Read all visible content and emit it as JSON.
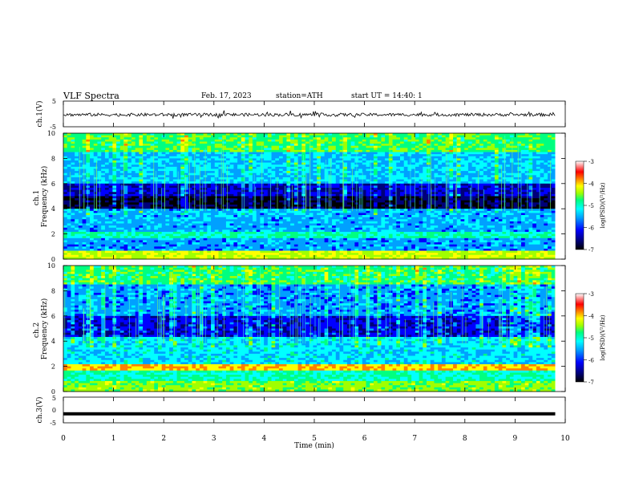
{
  "header": {
    "title": "VLF Spectra",
    "date": "Feb. 17, 2023",
    "station": "station=ATH",
    "start_ut": "start UT =   14:40: 1"
  },
  "chart_data": [
    {
      "type": "line",
      "panel": "ch1-waveform",
      "ylabel": "ch.1(V)",
      "ylim": [
        -5,
        5
      ],
      "y_ticks": [
        "5",
        "-5"
      ],
      "xlim": [
        0,
        10
      ],
      "series_description_value_range": [
        -1.5,
        1.0
      ],
      "mean": -0.3
    },
    {
      "type": "heatmap",
      "panel": "ch1-spectrogram",
      "ylabel": "ch.1\nFrequency (kHz)",
      "ylabel_lines": [
        "ch.1",
        "Frequency (kHz)"
      ],
      "ylim": [
        0,
        10
      ],
      "y_ticks": [
        "0",
        "2",
        "4",
        "6",
        "8",
        "10"
      ],
      "xlim": [
        0,
        10
      ],
      "data_end_min": 9.8,
      "colorbar": {
        "label": "log(PSD)(V²/Hz)",
        "range": [
          -7,
          -3
        ],
        "ticks": [
          "-3",
          "-4",
          "-5",
          "-6",
          "-7"
        ]
      }
    },
    {
      "type": "heatmap",
      "panel": "ch2-spectrogram",
      "ylabel_lines": [
        "ch.2",
        "Frequency (kHz)"
      ],
      "ylim": [
        0,
        10
      ],
      "y_ticks": [
        "0",
        "2",
        "4",
        "6",
        "8",
        "10"
      ],
      "xlim": [
        0,
        10
      ],
      "data_end_min": 9.8,
      "colorbar": {
        "label": "log(PSD)(V²/Hz)",
        "range": [
          -7,
          -3
        ],
        "ticks": [
          "-3",
          "-4",
          "-5",
          "-6",
          "-7"
        ]
      }
    },
    {
      "type": "line",
      "panel": "ch3-waveform",
      "ylabel": "ch.3(V)",
      "ylim": [
        -5,
        5
      ],
      "y_ticks": [
        "5",
        "0",
        "-5"
      ],
      "xlim": [
        0,
        10
      ],
      "value": -1.5
    }
  ],
  "xaxis": {
    "label": "Time (min)",
    "ticks": [
      "0",
      "1",
      "2",
      "3",
      "4",
      "5",
      "6",
      "7",
      "8",
      "9",
      "10"
    ]
  },
  "colors": {
    "scale": [
      "#000000",
      "#00007a",
      "#0000ff",
      "#00a0ff",
      "#00ffff",
      "#00ff80",
      "#a0ff00",
      "#ffff00",
      "#ff8000",
      "#ff0000",
      "#ffffff"
    ]
  }
}
